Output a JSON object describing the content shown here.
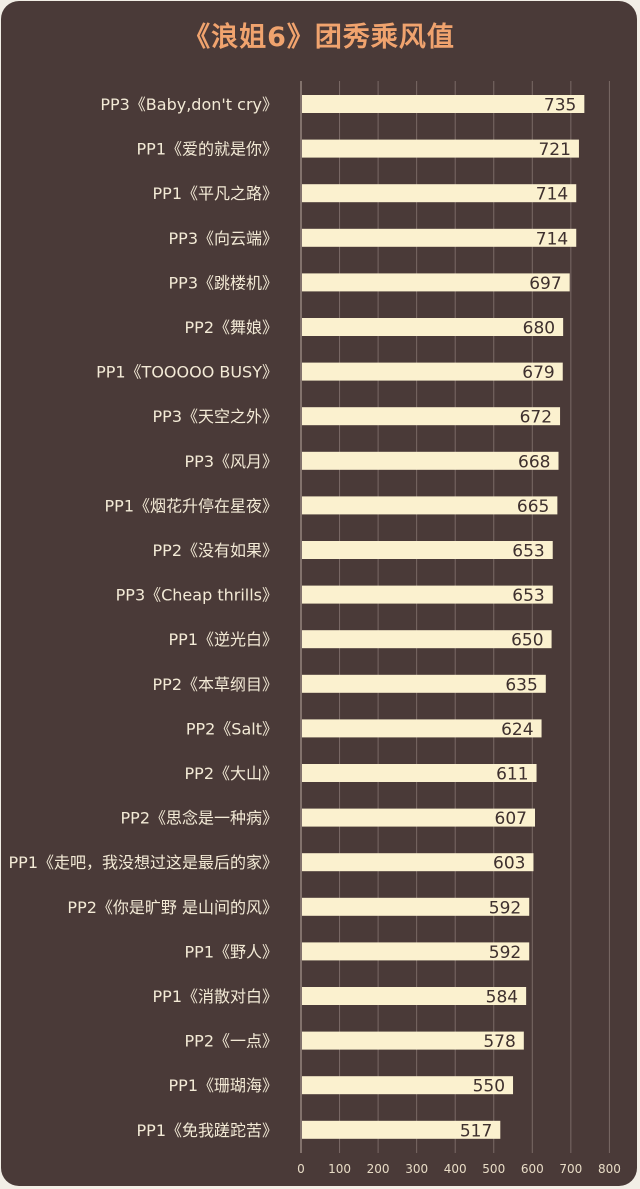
{
  "title": "《浪姐6》团秀乘风值",
  "colors": {
    "background": "#4a3a38",
    "bar": "#fbf1cf",
    "title": "#f0a36e",
    "label": "#f3ead6",
    "value": "#3e302e",
    "grid": "#7a6a66"
  },
  "chart_data": {
    "type": "bar",
    "orientation": "horizontal",
    "title": "《浪姐6》团秀乘风值",
    "xlabel": "",
    "ylabel": "",
    "xlim": [
      0,
      800
    ],
    "x_ticks": [
      0,
      100,
      200,
      300,
      400,
      500,
      600,
      700,
      800
    ],
    "grid": true,
    "categories": [
      "PP3《Baby,don't cry》",
      "PP1《爱的就是你》",
      "PP1《平凡之路》",
      "PP3《向云端》",
      "PP3《跳楼机》",
      "PP2《舞娘》",
      "PP1《TOOOOO BUSY》",
      "PP3《天空之外》",
      "PP3《风月》",
      "PP1《烟花升停在星夜》",
      "PP2《没有如果》",
      "PP3《Cheap thrills》",
      "PP1《逆光白》",
      "PP2《本草纲目》",
      "PP2《Salt》",
      "PP2《大山》",
      "PP2《思念是一种病》",
      "PP1《走吧，我没想过这是最后的家》",
      "PP2《你是旷野 是山间的风》",
      "PP1《野人》",
      "PP1《消散对白》",
      "PP2《一点》",
      "PP1《珊瑚海》",
      "PP1《免我蹉跎苦》"
    ],
    "values": [
      735,
      721,
      714,
      714,
      697,
      680,
      679,
      672,
      668,
      665,
      653,
      653,
      650,
      635,
      624,
      611,
      607,
      603,
      592,
      592,
      584,
      578,
      550,
      517
    ]
  }
}
